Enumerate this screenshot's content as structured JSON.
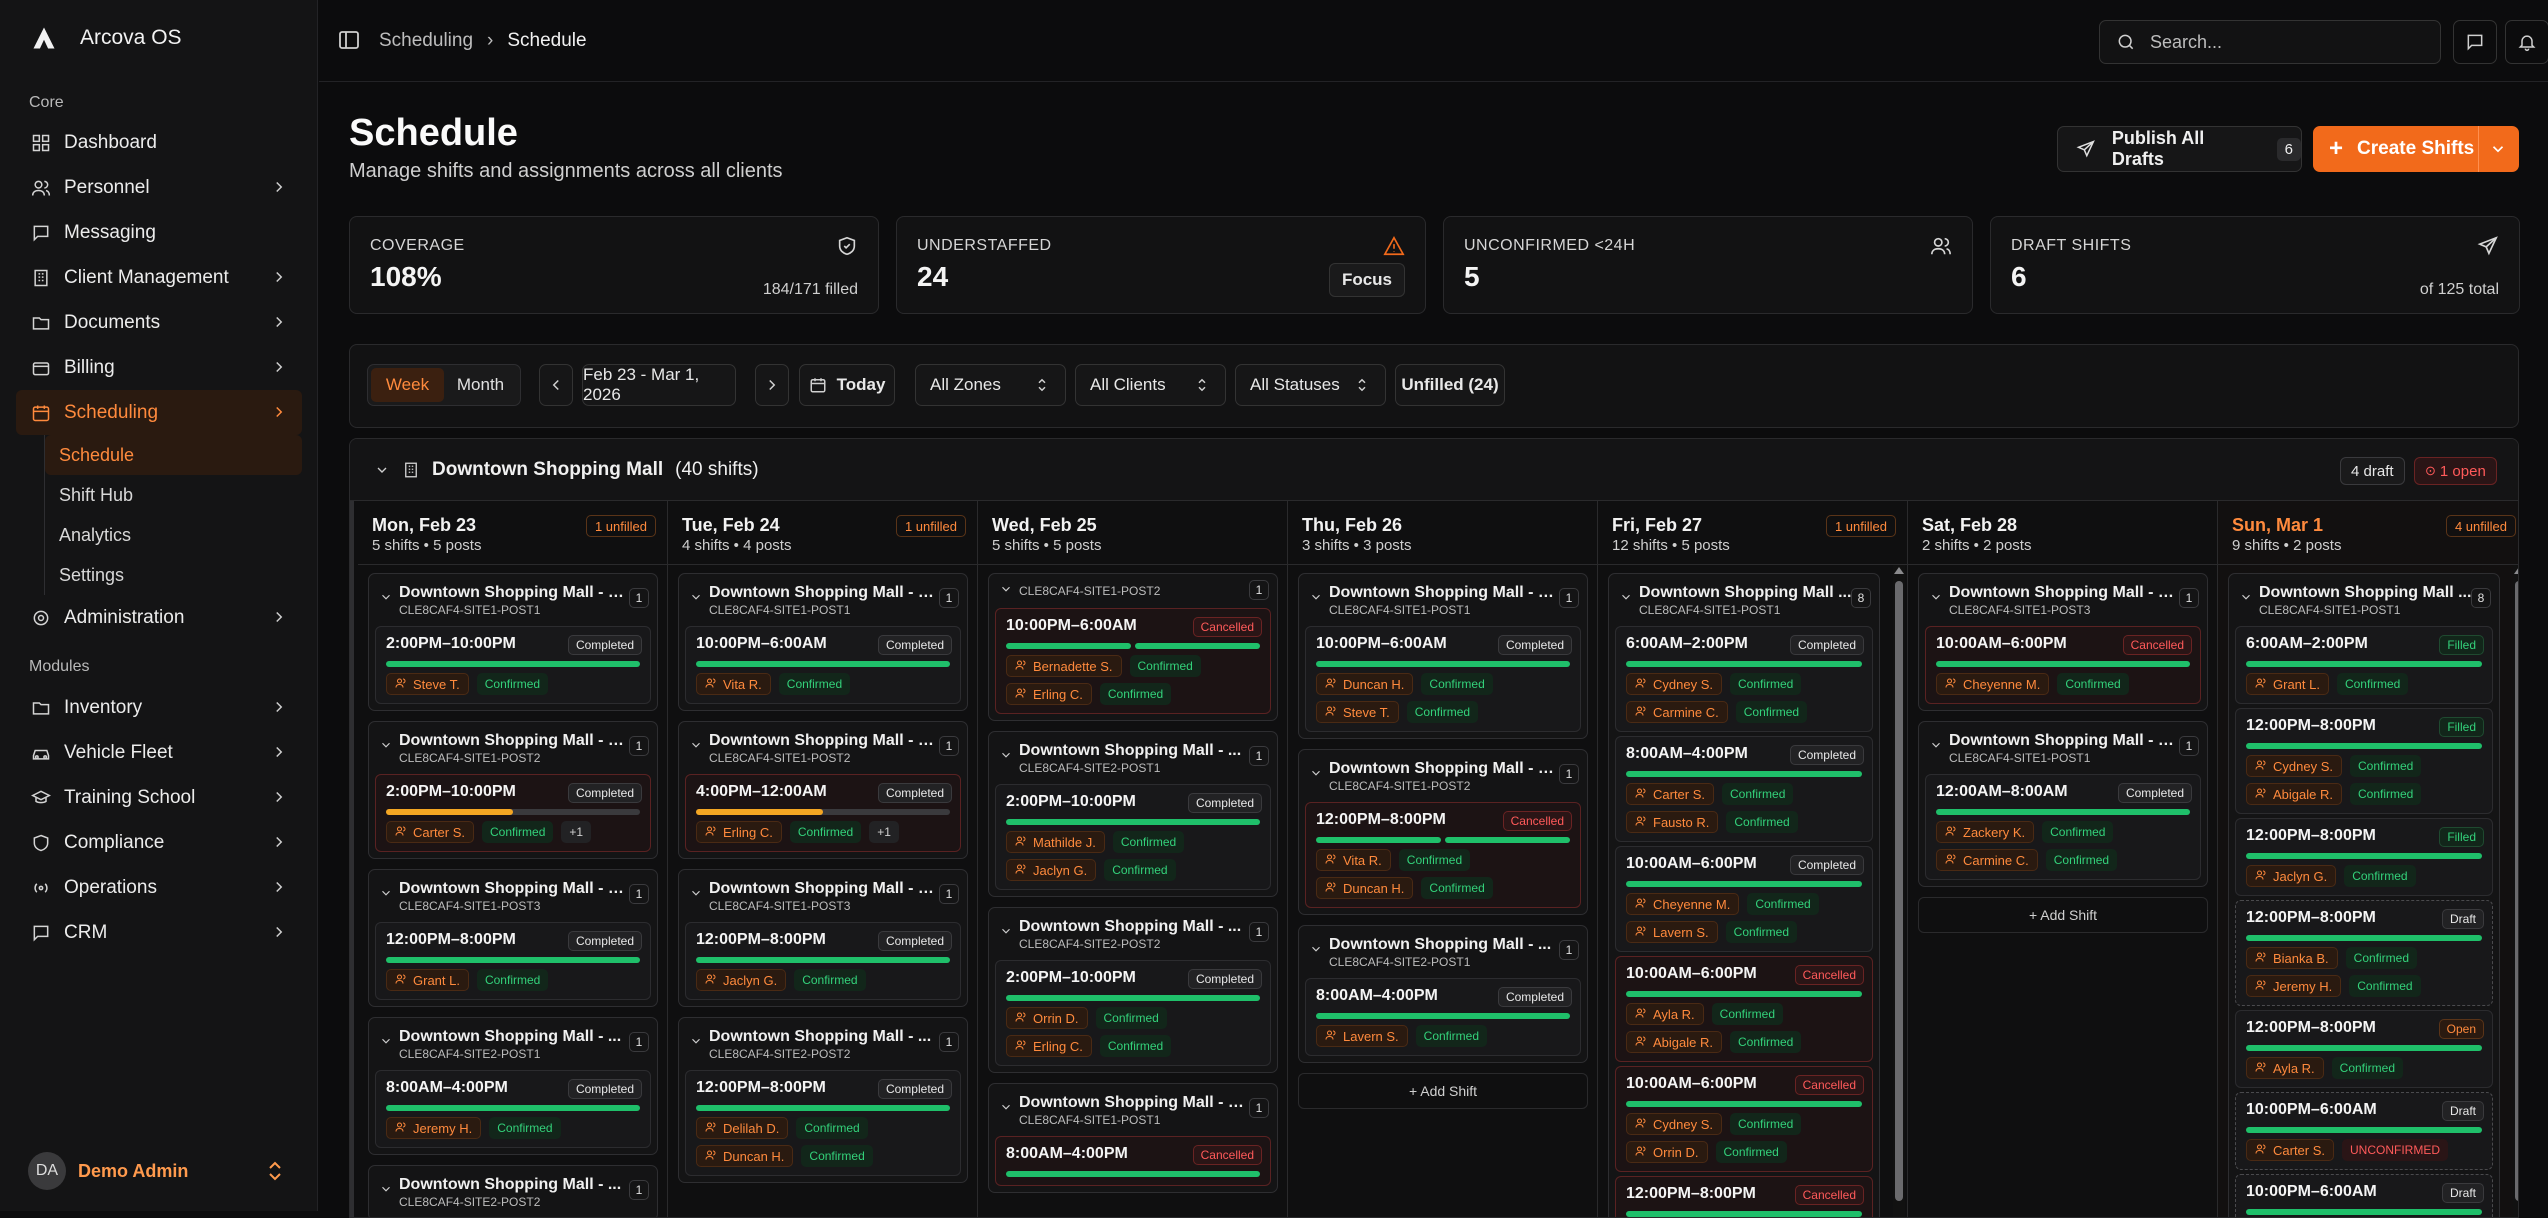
{
  "app": {
    "name": "Arcova OS"
  },
  "sidebar": {
    "core_label": "Core",
    "modules_label": "Modules",
    "core": [
      {
        "label": "Dashboard",
        "icon": "dashboard-icon"
      },
      {
        "label": "Personnel",
        "icon": "users-icon"
      },
      {
        "label": "Messaging",
        "icon": "message-icon"
      },
      {
        "label": "Client Management",
        "icon": "building-icon"
      },
      {
        "label": "Documents",
        "icon": "folder-icon"
      },
      {
        "label": "Billing",
        "icon": "wallet-icon"
      },
      {
        "label": "Scheduling",
        "icon": "calendar-icon"
      }
    ],
    "scheduling_sub": [
      "Schedule",
      "Shift Hub",
      "Analytics",
      "Settings"
    ],
    "admin": {
      "label": "Administration",
      "icon": "gear-icon"
    },
    "modules": [
      {
        "label": "Inventory",
        "icon": "folder-icon"
      },
      {
        "label": "Vehicle Fleet",
        "icon": "car-icon"
      },
      {
        "label": "Training School",
        "icon": "graduation-cap-icon"
      },
      {
        "label": "Compliance",
        "icon": "shield-icon"
      },
      {
        "label": "Operations",
        "icon": "radio-icon"
      },
      {
        "label": "CRM",
        "icon": "chat-icon"
      }
    ],
    "user": {
      "initials": "DA",
      "name": "Demo Admin"
    }
  },
  "topbar": {
    "breadcrumb": [
      "Scheduling",
      "Schedule"
    ],
    "search_placeholder": "Search..."
  },
  "page": {
    "title": "Schedule",
    "subtitle": "Manage shifts and assignments across all clients",
    "publish_label": "Publish All Drafts",
    "publish_count": "6",
    "create_label": "Create Shifts"
  },
  "stats": [
    {
      "label": "COVERAGE",
      "value": "108%",
      "foot": "184/171 filled",
      "icon": "shield-check-icon",
      "color": "#d6d6d6"
    },
    {
      "label": "UNDERSTAFFED",
      "value": "24",
      "action": "Focus",
      "icon": "warning-icon",
      "color": "#f26a1b"
    },
    {
      "label": "UNCONFIRMED <24H",
      "value": "5",
      "icon": "users-icon",
      "color": "#d6d6d6"
    },
    {
      "label": "DRAFT SHIFTS",
      "value": "6",
      "foot": "of 125 total",
      "icon": "send-icon",
      "color": "#d6d6d6"
    }
  ],
  "filters": {
    "view_week": "Week",
    "view_month": "Month",
    "range": "Feb 23 - Mar 1, 2026",
    "today": "Today",
    "zones": "All Zones",
    "clients": "All Clients",
    "statuses": "All Statuses",
    "unfilled": "Unfilled (24)"
  },
  "group": {
    "name": "Downtown Shopping Mall",
    "count": "(40 shifts)",
    "draft_badge": "4 draft",
    "open_badge": "1 open"
  },
  "add_shift": "+ Add Shift",
  "days": [
    {
      "name": "Mon, Feb 23",
      "meta": "5 shifts • 5 posts",
      "unfilled": "1 unfilled",
      "cards": [
        {
          "title": "Downtown Shopping Mall - D...",
          "code": "CLE8CAF4-SITE1-POST1",
          "n": "1",
          "shifts": [
            {
              "time": "2:00PM–10:00PM",
              "status": "Completed",
              "bar": "full",
              "people": [
                [
                  "Steve T.",
                  "Confirmed"
                ]
              ]
            }
          ]
        },
        {
          "title": "Downtown Shopping Mall - D...",
          "code": "CLE8CAF4-SITE1-POST2",
          "n": "1",
          "shifts": [
            {
              "time": "2:00PM–10:00PM",
              "status": "Completed",
              "bar": "half",
              "kind": "cancel",
              "people": [
                [
                  "Carter S.",
                  "Confirmed",
                  "+1"
                ]
              ]
            }
          ]
        },
        {
          "title": "Downtown Shopping Mall - D...",
          "code": "CLE8CAF4-SITE1-POST3",
          "n": "1",
          "shifts": [
            {
              "time": "12:00PM–8:00PM",
              "status": "Completed",
              "bar": "full",
              "people": [
                [
                  "Grant L.",
                  "Confirmed"
                ]
              ]
            }
          ]
        },
        {
          "title": "Downtown Shopping Mall - ...",
          "code": "CLE8CAF4-SITE2-POST1",
          "n": "1",
          "shifts": [
            {
              "time": "8:00AM–4:00PM",
              "status": "Completed",
              "bar": "full",
              "people": [
                [
                  "Jeremy H.",
                  "Confirmed"
                ]
              ]
            }
          ]
        },
        {
          "title": "Downtown Shopping Mall - ...",
          "code": "CLE8CAF4-SITE2-POST2",
          "n": "1",
          "shifts": []
        }
      ]
    },
    {
      "name": "Tue, Feb 24",
      "meta": "4 shifts • 4 posts",
      "unfilled": "1 unfilled",
      "cards": [
        {
          "title": "Downtown Shopping Mall - D...",
          "code": "CLE8CAF4-SITE1-POST1",
          "n": "1",
          "shifts": [
            {
              "time": "10:00PM–6:00AM",
              "status": "Completed",
              "bar": "full",
              "people": [
                [
                  "Vita R.",
                  "Confirmed"
                ]
              ]
            }
          ]
        },
        {
          "title": "Downtown Shopping Mall - D...",
          "code": "CLE8CAF4-SITE1-POST2",
          "n": "1",
          "shifts": [
            {
              "time": "4:00PM–12:00AM",
              "status": "Completed",
              "bar": "half",
              "kind": "cancel",
              "people": [
                [
                  "Erling C.",
                  "Confirmed",
                  "+1"
                ]
              ]
            }
          ]
        },
        {
          "title": "Downtown Shopping Mall - D...",
          "code": "CLE8CAF4-SITE1-POST3",
          "n": "1",
          "shifts": [
            {
              "time": "12:00PM–8:00PM",
              "status": "Completed",
              "bar": "full",
              "people": [
                [
                  "Jaclyn G.",
                  "Confirmed"
                ]
              ]
            }
          ]
        },
        {
          "title": "Downtown Shopping Mall - ...",
          "code": "CLE8CAF4-SITE2-POST2",
          "n": "1",
          "shifts": [
            {
              "time": "12:00PM–8:00PM",
              "status": "Completed",
              "bar": "full",
              "people": [
                [
                  "Delilah D.",
                  "Confirmed"
                ],
                [
                  "Duncan H.",
                  "Confirmed"
                ]
              ]
            }
          ]
        }
      ]
    },
    {
      "name": "Wed, Feb 25",
      "meta": "5 shifts • 5 posts",
      "unfilled": "",
      "cards": [
        {
          "title": "",
          "code": "CLE8CAF4-SITE1-POST2",
          "n": "1",
          "hide_title": true,
          "shifts": [
            {
              "time": "10:00PM–6:00AM",
              "status": "Cancelled",
              "bar": "split",
              "kind": "cancel",
              "people": [
                [
                  "Bernadette S.",
                  "Confirmed"
                ],
                [
                  "Erling C.",
                  "Confirmed"
                ]
              ]
            }
          ]
        },
        {
          "title": "Downtown Shopping Mall - ...",
          "code": "CLE8CAF4-SITE2-POST1",
          "n": "1",
          "shifts": [
            {
              "time": "2:00PM–10:00PM",
              "status": "Completed",
              "bar": "full",
              "people": [
                [
                  "Mathilde J.",
                  "Confirmed"
                ],
                [
                  "Jaclyn G.",
                  "Confirmed"
                ]
              ]
            }
          ]
        },
        {
          "title": "Downtown Shopping Mall - ...",
          "code": "CLE8CAF4-SITE2-POST2",
          "n": "1",
          "shifts": [
            {
              "time": "2:00PM–10:00PM",
              "status": "Completed",
              "bar": "full",
              "people": [
                [
                  "Orrin D.",
                  "Confirmed"
                ],
                [
                  "Erling C.",
                  "Confirmed"
                ]
              ]
            }
          ]
        },
        {
          "title": "Downtown Shopping Mall - D...",
          "code": "CLE8CAF4-SITE1-POST1",
          "n": "1",
          "shifts": [
            {
              "time": "8:00AM–4:00PM",
              "status": "Cancelled",
              "bar": "full",
              "kind": "cancel",
              "people": []
            }
          ]
        }
      ]
    },
    {
      "name": "Thu, Feb 26",
      "meta": "3 shifts • 3 posts",
      "unfilled": "",
      "add": true,
      "cards": [
        {
          "title": "Downtown Shopping Mall - D...",
          "code": "CLE8CAF4-SITE1-POST1",
          "n": "1",
          "shifts": [
            {
              "time": "10:00PM–6:00AM",
              "status": "Completed",
              "bar": "full",
              "people": [
                [
                  "Duncan H.",
                  "Confirmed"
                ],
                [
                  "Steve T.",
                  "Confirmed"
                ]
              ]
            }
          ]
        },
        {
          "title": "Downtown Shopping Mall - D...",
          "code": "CLE8CAF4-SITE1-POST2",
          "n": "1",
          "shifts": [
            {
              "time": "12:00PM–8:00PM",
              "status": "Cancelled",
              "bar": "split",
              "kind": "cancel",
              "people": [
                [
                  "Vita R.",
                  "Confirmed"
                ],
                [
                  "Duncan H.",
                  "Confirmed"
                ]
              ]
            }
          ]
        },
        {
          "title": "Downtown Shopping Mall - ...",
          "code": "CLE8CAF4-SITE2-POST1",
          "n": "1",
          "shifts": [
            {
              "time": "8:00AM–4:00PM",
              "status": "Completed",
              "bar": "full",
              "people": [
                [
                  "Lavern S.",
                  "Confirmed"
                ]
              ]
            }
          ]
        }
      ]
    },
    {
      "name": "Fri, Feb 27",
      "meta": "12 shifts • 5 posts",
      "unfilled": "1 unfilled",
      "scroll": true,
      "cards": [
        {
          "title": "Downtown Shopping Mall ...",
          "code": "CLE8CAF4-SITE1-POST1",
          "n": "8",
          "shifts": [
            {
              "time": "6:00AM–2:00PM",
              "status": "Completed",
              "bar": "full",
              "people": [
                [
                  "Cydney S.",
                  "Confirmed"
                ],
                [
                  "Carmine C.",
                  "Confirmed"
                ]
              ]
            },
            {
              "time": "8:00AM–4:00PM",
              "status": "Completed",
              "bar": "full",
              "people": [
                [
                  "Carter S.",
                  "Confirmed"
                ],
                [
                  "Fausto R.",
                  "Confirmed"
                ]
              ]
            },
            {
              "time": "10:00AM–6:00PM",
              "status": "Completed",
              "bar": "full",
              "people": [
                [
                  "Cheyenne M.",
                  "Confirmed"
                ],
                [
                  "Lavern S.",
                  "Confirmed"
                ]
              ]
            },
            {
              "time": "10:00AM–6:00PM",
              "status": "Cancelled",
              "bar": "full",
              "kind": "cancel",
              "people": [
                [
                  "Ayla R.",
                  "Confirmed"
                ],
                [
                  "Abigale R.",
                  "Confirmed"
                ]
              ]
            },
            {
              "time": "10:00AM–6:00PM",
              "status": "Cancelled",
              "bar": "full",
              "kind": "cancel",
              "people": [
                [
                  "Cydney S.",
                  "Confirmed"
                ],
                [
                  "Orrin D.",
                  "Confirmed"
                ]
              ]
            },
            {
              "time": "12:00PM–8:00PM",
              "status": "Cancelled",
              "bar": "full",
              "kind": "cancel",
              "people": []
            }
          ]
        }
      ]
    },
    {
      "name": "Sat, Feb 28",
      "meta": "2 shifts • 2 posts",
      "unfilled": "",
      "add": true,
      "cards": [
        {
          "title": "Downtown Shopping Mall - D...",
          "code": "CLE8CAF4-SITE1-POST3",
          "n": "1",
          "shifts": [
            {
              "time": "10:00AM–6:00PM",
              "status": "Cancelled",
              "bar": "full",
              "kind": "cancel",
              "people": [
                [
                  "Cheyenne M.",
                  "Confirmed"
                ]
              ]
            }
          ]
        },
        {
          "title": "Downtown Shopping Mall - D...",
          "code": "CLE8CAF4-SITE1-POST1",
          "n": "1",
          "shifts": [
            {
              "time": "12:00AM–8:00AM",
              "status": "Completed",
              "bar": "full",
              "people": [
                [
                  "Zackery K.",
                  "Confirmed"
                ],
                [
                  "Carmine C.",
                  "Confirmed"
                ]
              ]
            }
          ]
        }
      ]
    },
    {
      "name": "Sun, Mar 1",
      "meta": "9 shifts • 2 posts",
      "unfilled": "4 unfilled",
      "sun": true,
      "scroll": true,
      "cards": [
        {
          "title": "Downtown Shopping Mall ...",
          "code": "CLE8CAF4-SITE1-POST1",
          "n": "8",
          "shifts": [
            {
              "time": "6:00AM–2:00PM",
              "status": "Filled",
              "bar": "full",
              "people": [
                [
                  "Grant L.",
                  "Confirmed"
                ]
              ]
            },
            {
              "time": "12:00PM–8:00PM",
              "status": "Filled",
              "bar": "full",
              "people": [
                [
                  "Cydney S.",
                  "Confirmed"
                ],
                [
                  "Abigale R.",
                  "Confirmed"
                ]
              ]
            },
            {
              "time": "12:00PM–8:00PM",
              "status": "Filled",
              "bar": "full",
              "people": [
                [
                  "Jaclyn G.",
                  "Confirmed"
                ]
              ]
            },
            {
              "time": "12:00PM–8:00PM",
              "status": "Draft",
              "bar": "full",
              "kind": "dash",
              "people": [
                [
                  "Bianka B.",
                  "Confirmed"
                ],
                [
                  "Jeremy H.",
                  "Confirmed"
                ]
              ]
            },
            {
              "time": "12:00PM–8:00PM",
              "status": "Open",
              "bar": "full",
              "people": [
                [
                  "Ayla R.",
                  "Confirmed"
                ]
              ]
            },
            {
              "time": "10:00PM–6:00AM",
              "status": "Draft",
              "bar": "full",
              "kind": "dash",
              "people": [
                [
                  "Carter S.",
                  "UNCONFIRMED"
                ]
              ]
            },
            {
              "time": "10:00PM–6:00AM",
              "status": "Draft",
              "bar": "full",
              "kind": "dash",
              "people": []
            }
          ]
        }
      ]
    }
  ]
}
